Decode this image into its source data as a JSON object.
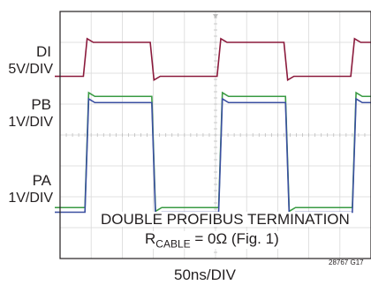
{
  "chart_data": {
    "type": "line",
    "title": "",
    "x_scale": "50ns/DIV",
    "grid": true,
    "graticule": {
      "x_divisions": 10,
      "y_divisions": 8
    },
    "series": [
      {
        "name": "DI",
        "scale": "5V/DIV",
        "color": "#8b1a3c",
        "waveform": "square",
        "period_divisions": 4.3,
        "high_level_div": 7.0,
        "low_level_div": 5.9,
        "edges_div": [
          0.75,
          2.9,
          5.05,
          7.2,
          9.35
        ]
      },
      {
        "name": "PB",
        "scale": "1V/DIV",
        "color": "#3a9b43",
        "waveform": "square",
        "period_divisions": 4.3,
        "high_level_div": 5.25,
        "low_level_div": 1.65,
        "edges_div": [
          0.8,
          2.95,
          5.1,
          7.25,
          9.4
        ]
      },
      {
        "name": "PA",
        "scale": "1V/DIV",
        "color": "#3a4fa0",
        "waveform": "square",
        "period_divisions": 4.3,
        "high_level_div": 5.05,
        "low_level_div": 1.5,
        "edges_div": [
          0.8,
          2.95,
          5.1,
          7.25,
          9.4
        ]
      }
    ],
    "annotation": {
      "line1": "DOUBLE PROFIBUS TERMINATION",
      "line2_prefix": "R",
      "line2_sub": "CABLE",
      "line2_suffix": " = 0Ω (Fig. 1)"
    },
    "figure_id": "28767 G17"
  },
  "labels": {
    "di_name": "DI",
    "di_scale": "5V/DIV",
    "pb_name": "PB",
    "pb_scale": "1V/DIV",
    "pa_name": "PA",
    "pa_scale": "1V/DIV",
    "x_scale": "50ns/DIV",
    "figure_id": "28767 G17"
  }
}
